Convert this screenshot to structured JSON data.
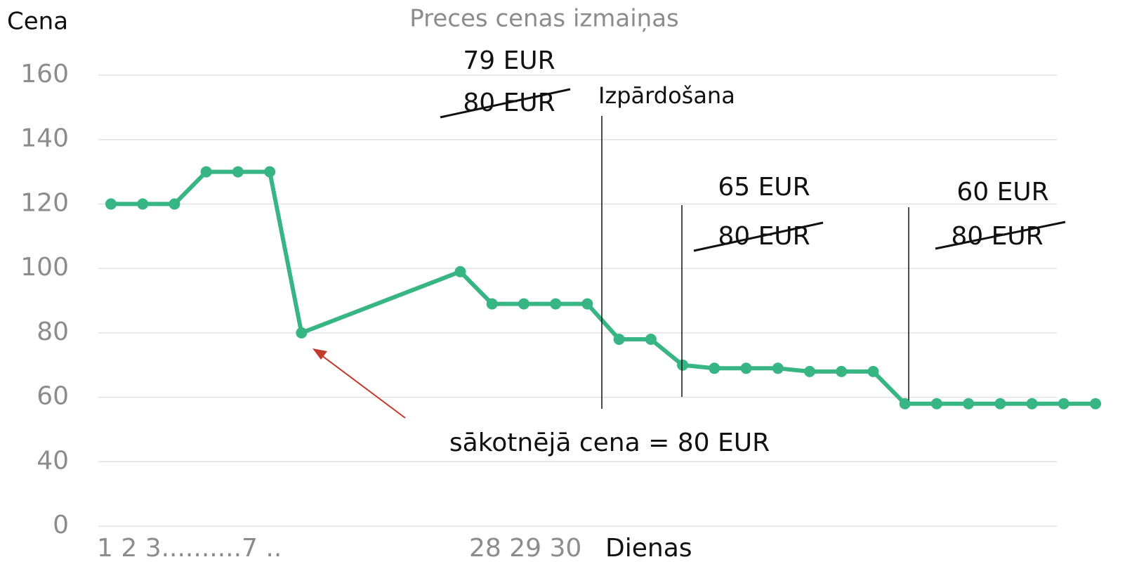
{
  "chart_data": {
    "type": "line",
    "title": "Preces cenas izmaiņas",
    "y_label": "Cena",
    "x_labels": [
      "1 2 3..........7 ..",
      "28 29 30",
      "Dienas"
    ],
    "annotations": [
      "79 EUR",
      "80 EUR",
      "Izpārdošana",
      "65 EUR",
      "80 EUR",
      "60 EUR",
      "80 EUR",
      "sākotnējā cena = 80 EUR"
    ],
    "x": [
      1,
      2,
      3,
      4,
      5,
      6,
      7,
      12,
      13,
      14,
      15,
      16,
      17,
      18,
      19,
      20,
      21,
      22,
      23,
      24,
      25,
      26,
      27,
      28,
      29,
      30,
      31,
      32
    ],
    "series": [
      {
        "color": "#37b584",
        "values": [
          120,
          120,
          120,
          130,
          130,
          130,
          80,
          99,
          89,
          89,
          89,
          89,
          78,
          78,
          70,
          69,
          69,
          69,
          68,
          68,
          68,
          58,
          58,
          58,
          58,
          58,
          58,
          58
        ]
      }
    ],
    "xlim": [
      1,
      32
    ],
    "ylim": [
      20,
      160
    ],
    "yticks": [
      {
        "value": 20,
        "label": "0"
      },
      40,
      60,
      80,
      100,
      120,
      140,
      160
    ],
    "grid": true
  }
}
